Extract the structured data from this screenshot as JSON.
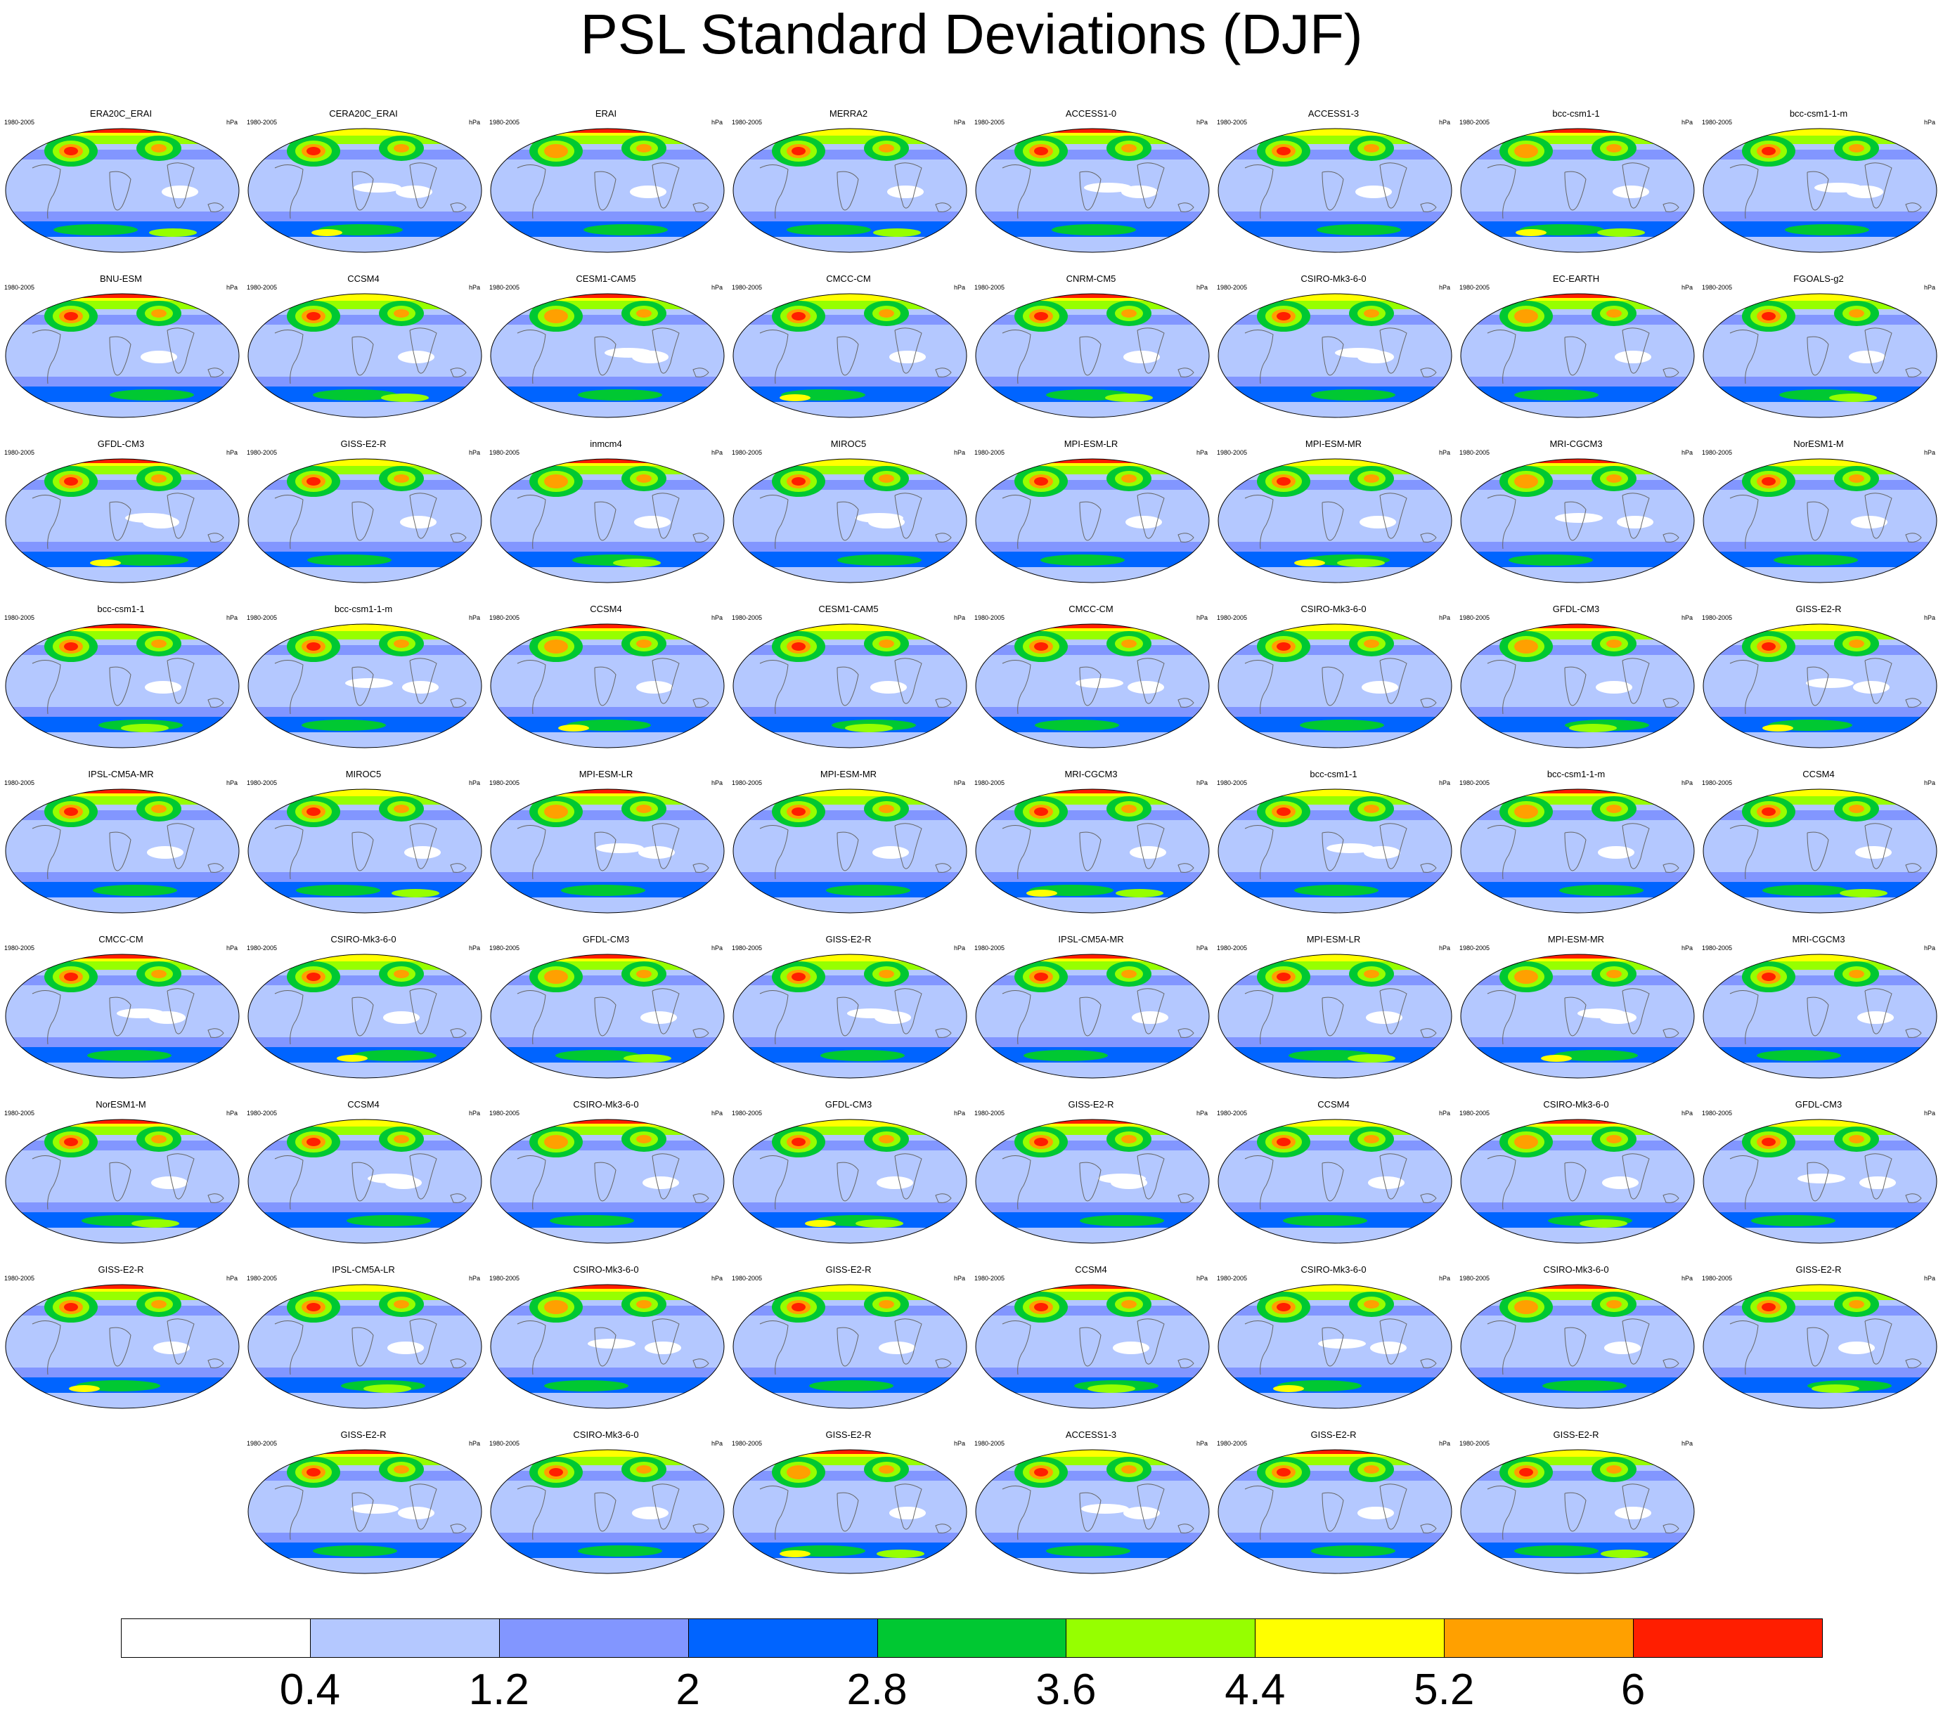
{
  "title": "PSL Standard Deviations (DJF)",
  "panel_period": "1980-2005",
  "panel_units": "hPa",
  "panels": [
    "ERA20C_ERAI",
    "CERA20C_ERAI",
    "ERAI",
    "MERRA2",
    "ACCESS1-0",
    "ACCESS1-3",
    "bcc-csm1-1",
    "bcc-csm1-1-m",
    "BNU-ESM",
    "CCSM4",
    "CESM1-CAM5",
    "CMCC-CM",
    "CNRM-CM5",
    "CSIRO-Mk3-6-0",
    "EC-EARTH",
    "FGOALS-g2",
    "GFDL-CM3",
    "GISS-E2-R",
    "inmcm4",
    "MIROC5",
    "MPI-ESM-LR",
    "MPI-ESM-MR",
    "MRI-CGCM3",
    "NorESM1-M",
    "bcc-csm1-1",
    "bcc-csm1-1-m",
    "CCSM4",
    "CESM1-CAM5",
    "CMCC-CM",
    "CSIRO-Mk3-6-0",
    "GFDL-CM3",
    "GISS-E2-R",
    "IPSL-CM5A-MR",
    "MIROC5",
    "MPI-ESM-LR",
    "MPI-ESM-MR",
    "MRI-CGCM3",
    "bcc-csm1-1",
    "bcc-csm1-1-m",
    "CCSM4",
    "CMCC-CM",
    "CSIRO-Mk3-6-0",
    "GFDL-CM3",
    "GISS-E2-R",
    "IPSL-CM5A-MR",
    "MPI-ESM-LR",
    "MPI-ESM-MR",
    "MRI-CGCM3",
    "NorESM1-M",
    "CCSM4",
    "CSIRO-Mk3-6-0",
    "GFDL-CM3",
    "GISS-E2-R",
    "CCSM4",
    "CSIRO-Mk3-6-0",
    "GFDL-CM3",
    "GISS-E2-R",
    "IPSL-CM5A-LR",
    "CSIRO-Mk3-6-0",
    "GISS-E2-R",
    "CCSM4",
    "CSIRO-Mk3-6-0",
    "CSIRO-Mk3-6-0",
    "GISS-E2-R",
    "GISS-E2-R",
    "CSIRO-Mk3-6-0",
    "GISS-E2-R",
    "ACCESS1-3",
    "GISS-E2-R",
    "GISS-E2-R"
  ],
  "colorbar": {
    "labels": [
      "0.4",
      "1.2",
      "2",
      "2.8",
      "3.6",
      "4.4",
      "5.2",
      "6"
    ],
    "colors": [
      "#ffffff",
      "#b4c8ff",
      "#8296ff",
      "#0064ff",
      "#00c832",
      "#96ff00",
      "#ffff00",
      "#ffa000",
      "#ff1e00"
    ]
  }
}
